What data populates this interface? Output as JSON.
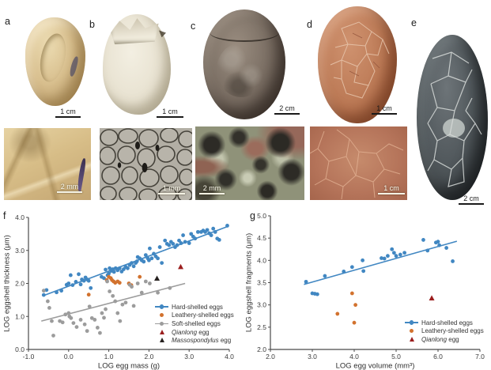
{
  "figure": {
    "panels": {
      "a": {
        "label": "a",
        "scale_main": "1 cm",
        "scale_detail": "2 mm"
      },
      "b": {
        "label": "b",
        "scale_main": "1 cm",
        "scale_detail": "1 mm"
      },
      "c": {
        "label": "c",
        "scale_main": "2 cm",
        "scale_detail": "2 mm"
      },
      "d": {
        "label": "d",
        "scale_main": "1 cm",
        "scale_detail": "1 cm"
      },
      "e": {
        "label": "e",
        "scale_main": "2 cm"
      },
      "f": {
        "label": "f"
      },
      "g": {
        "label": "g"
      }
    },
    "colors": {
      "hard_shelled": "#4187c2",
      "leathery_shelled": "#d2722e",
      "soft_shelled": "#9c9c9c",
      "qianlong": "#9b1e1e",
      "massospondylus": "#26211f"
    }
  },
  "chart_data": [
    {
      "type": "scatter",
      "panel": "f",
      "xlabel": "LOG egg mass (g)",
      "ylabel": "LOG eggshell thickness (μm)",
      "xlim": [
        -1.0,
        4.0
      ],
      "ylim": [
        0.0,
        4.0
      ],
      "xticks": [
        "-1.0",
        "0.0",
        "1.0",
        "2.0",
        "3.0",
        "4.0"
      ],
      "yticks": [
        "0.0",
        "1.0",
        "2.0",
        "3.0",
        "4.0"
      ],
      "grid": false,
      "legend_position": "bottom-right",
      "series": [
        {
          "name": "Hard-shelled eggs",
          "marker": "circle",
          "color": "#4187c2",
          "trend": [
            [
              -0.65,
              1.62
            ],
            [
              3.97,
              3.73
            ]
          ],
          "points": [
            [
              -0.62,
              1.65
            ],
            [
              -0.55,
              1.8
            ],
            [
              -0.3,
              1.73
            ],
            [
              -0.18,
              1.78
            ],
            [
              -0.05,
              1.96
            ],
            [
              0.0,
              2.0
            ],
            [
              0.05,
              2.25
            ],
            [
              0.1,
              1.95
            ],
            [
              0.18,
              2.05
            ],
            [
              0.25,
              2.28
            ],
            [
              0.3,
              1.97
            ],
            [
              0.33,
              2.12
            ],
            [
              0.38,
              2.08
            ],
            [
              0.42,
              2.18
            ],
            [
              0.46,
              2.12
            ],
            [
              0.5,
              2.08
            ],
            [
              0.55,
              1.86
            ],
            [
              0.82,
              2.2
            ],
            [
              0.88,
              2.16
            ],
            [
              0.92,
              2.42
            ],
            [
              0.97,
              2.25
            ],
            [
              1.0,
              2.3
            ],
            [
              1.02,
              2.46
            ],
            [
              1.06,
              2.38
            ],
            [
              1.1,
              2.43
            ],
            [
              1.13,
              2.35
            ],
            [
              1.17,
              2.46
            ],
            [
              1.22,
              2.4
            ],
            [
              1.27,
              2.46
            ],
            [
              1.32,
              2.36
            ],
            [
              1.37,
              2.43
            ],
            [
              1.42,
              2.5
            ],
            [
              1.47,
              2.46
            ],
            [
              1.52,
              2.56
            ],
            [
              1.57,
              2.62
            ],
            [
              1.62,
              2.52
            ],
            [
              1.67,
              2.62
            ],
            [
              1.7,
              2.67
            ],
            [
              1.72,
              2.8
            ],
            [
              1.77,
              2.76
            ],
            [
              1.82,
              2.7
            ],
            [
              1.87,
              2.66
            ],
            [
              1.92,
              2.86
            ],
            [
              1.97,
              2.76
            ],
            [
              2.0,
              2.7
            ],
            [
              2.02,
              3.06
            ],
            [
              2.07,
              2.76
            ],
            [
              2.12,
              2.9
            ],
            [
              2.17,
              2.82
            ],
            [
              2.22,
              2.76
            ],
            [
              2.27,
              3.1
            ],
            [
              2.32,
              2.62
            ],
            [
              2.4,
              3.3
            ],
            [
              2.45,
              3.2
            ],
            [
              2.5,
              3.16
            ],
            [
              2.55,
              3.26
            ],
            [
              2.6,
              3.2
            ],
            [
              2.65,
              3.1
            ],
            [
              2.7,
              3.16
            ],
            [
              2.75,
              3.3
            ],
            [
              2.8,
              3.22
            ],
            [
              2.85,
              3.46
            ],
            [
              2.9,
              3.26
            ],
            [
              3.0,
              3.22
            ],
            [
              3.05,
              3.5
            ],
            [
              3.1,
              3.42
            ],
            [
              3.15,
              3.36
            ],
            [
              3.22,
              3.56
            ],
            [
              3.3,
              3.56
            ],
            [
              3.35,
              3.6
            ],
            [
              3.4,
              3.56
            ],
            [
              3.45,
              3.62
            ],
            [
              3.5,
              3.52
            ],
            [
              3.55,
              3.46
            ],
            [
              3.6,
              3.66
            ],
            [
              3.65,
              3.56
            ],
            [
              3.7,
              3.36
            ],
            [
              3.75,
              3.32
            ],
            [
              3.95,
              3.75
            ]
          ]
        },
        {
          "name": "Leathery-shelled eggs",
          "marker": "circle",
          "color": "#d2722e",
          "points": [
            [
              0.5,
              1.66
            ],
            [
              0.95,
              2.1
            ],
            [
              1.0,
              2.2
            ],
            [
              1.05,
              2.16
            ],
            [
              1.08,
              2.1
            ],
            [
              1.12,
              2.06
            ],
            [
              1.16,
              2.02
            ],
            [
              1.22,
              2.06
            ],
            [
              1.27,
              2.02
            ],
            [
              1.5,
              2.0
            ],
            [
              1.56,
              1.95
            ],
            [
              1.77,
              2.2
            ]
          ]
        },
        {
          "name": "Soft-shelled eggs",
          "marker": "circle",
          "color": "#9c9c9c",
          "trend": [
            [
              -0.68,
              0.86
            ],
            [
              2.9,
              2.0
            ]
          ],
          "points": [
            [
              -0.62,
              1.78
            ],
            [
              -0.52,
              1.46
            ],
            [
              -0.48,
              1.26
            ],
            [
              -0.42,
              0.86
            ],
            [
              -0.38,
              0.42
            ],
            [
              -0.22,
              0.86
            ],
            [
              -0.15,
              0.82
            ],
            [
              -0.08,
              1.06
            ],
            [
              0.0,
              1.1
            ],
            [
              0.02,
              1.0
            ],
            [
              0.06,
              0.95
            ],
            [
              0.12,
              0.8
            ],
            [
              0.2,
              0.68
            ],
            [
              0.3,
              0.9
            ],
            [
              0.4,
              0.76
            ],
            [
              0.46,
              0.56
            ],
            [
              0.52,
              1.3
            ],
            [
              0.58,
              0.95
            ],
            [
              0.65,
              0.9
            ],
            [
              0.72,
              0.66
            ],
            [
              0.78,
              0.5
            ],
            [
              0.83,
              1.1
            ],
            [
              0.88,
              0.96
            ],
            [
              0.92,
              1.22
            ],
            [
              0.96,
              2.06
            ],
            [
              1.02,
              1.76
            ],
            [
              1.1,
              1.62
            ],
            [
              1.16,
              1.46
            ],
            [
              1.22,
              1.1
            ],
            [
              1.28,
              0.86
            ],
            [
              1.34,
              1.36
            ],
            [
              1.42,
              1.42
            ],
            [
              1.52,
              1.96
            ],
            [
              1.57,
              1.9
            ],
            [
              1.62,
              1.32
            ],
            [
              1.72,
              2.0
            ],
            [
              1.82,
              1.72
            ],
            [
              1.92,
              2.06
            ],
            [
              2.02,
              2.0
            ],
            [
              2.22,
              1.72
            ],
            [
              2.52,
              1.86
            ]
          ]
        },
        {
          "name": "Qianlong egg",
          "italic_prefix": "Qianlong",
          "marker": "triangle",
          "color": "#9b1e1e",
          "points": [
            [
              2.79,
              2.5
            ]
          ]
        },
        {
          "name": "Massospondylus egg",
          "italic_prefix": "Massospondylus",
          "marker": "triangle",
          "color": "#26211f",
          "points": [
            [
              2.2,
              2.15
            ]
          ]
        }
      ]
    },
    {
      "type": "scatter",
      "panel": "g",
      "xlabel": "LOG egg volume (mm³)",
      "ylabel": "LOG eggshell fragments (μm)",
      "xlim": [
        2.0,
        7.0
      ],
      "ylim": [
        2.0,
        5.0
      ],
      "xticks": [
        "2.0",
        "3.0",
        "4.0",
        "5.0",
        "6.0",
        "7.0"
      ],
      "yticks": [
        "2.0",
        "2.5",
        "3.0",
        "3.5",
        "4.0",
        "4.5",
        "5.0"
      ],
      "grid": false,
      "legend_position": "bottom-right",
      "series": [
        {
          "name": "Hard-shelled eggs",
          "marker": "circle",
          "color": "#4187c2",
          "trend": [
            [
              2.8,
              3.46
            ],
            [
              6.45,
              4.43
            ]
          ],
          "points": [
            [
              2.85,
              3.52
            ],
            [
              3.0,
              3.26
            ],
            [
              3.06,
              3.25
            ],
            [
              3.12,
              3.24
            ],
            [
              3.3,
              3.65
            ],
            [
              3.75,
              3.75
            ],
            [
              3.95,
              3.85
            ],
            [
              4.2,
              4.0
            ],
            [
              4.22,
              3.76
            ],
            [
              4.65,
              4.05
            ],
            [
              4.72,
              4.04
            ],
            [
              4.8,
              4.1
            ],
            [
              4.9,
              4.25
            ],
            [
              4.95,
              4.17
            ],
            [
              5.0,
              4.1
            ],
            [
              5.1,
              4.13
            ],
            [
              5.2,
              4.17
            ],
            [
              5.65,
              4.46
            ],
            [
              5.75,
              4.22
            ],
            [
              5.95,
              4.4
            ],
            [
              6.0,
              4.42
            ],
            [
              6.03,
              4.34
            ],
            [
              6.2,
              4.28
            ],
            [
              6.35,
              3.98
            ]
          ]
        },
        {
          "name": "Leathery-shelled eggs",
          "marker": "circle",
          "color": "#d2722e",
          "points": [
            [
              3.6,
              2.8
            ],
            [
              3.95,
              3.26
            ],
            [
              4.0,
              2.6
            ],
            [
              4.03,
              3.0
            ]
          ]
        },
        {
          "name": "Qianlong egg",
          "italic_prefix": "Qianlong",
          "marker": "triangle",
          "color": "#9b1e1e",
          "points": [
            [
              5.85,
              3.15
            ]
          ]
        }
      ]
    }
  ]
}
